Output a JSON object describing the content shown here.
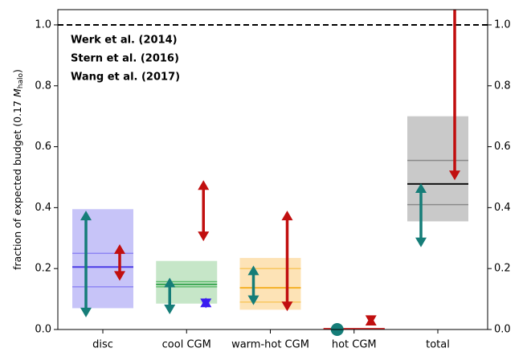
{
  "chart_data": {
    "type": "range",
    "ylabel": [
      "fraction of expected budget (0.17 ",
      "M",
      "halo",
      ")"
    ],
    "categories": [
      "disc",
      "cool CGM",
      "warm-hot CGM",
      "hot CGM",
      "total"
    ],
    "ylim": [
      0,
      1.05
    ],
    "yticks": [
      {
        "value": 0,
        "label": "0.0"
      },
      0.2,
      0.4,
      0.6,
      0.8,
      {
        "value": 1,
        "label": "1.0"
      }
    ],
    "y2lim": [
      0,
      1.05
    ],
    "y2ticks": [
      {
        "value": 0,
        "label": "0.0"
      },
      0.2,
      0.4,
      0.6,
      0.8,
      {
        "value": 1,
        "label": "1.0"
      }
    ],
    "reference_line": 1,
    "boxes": [
      {
        "low": 0.07,
        "high": 0.395,
        "median": 0.205,
        "inner": [
          0.14,
          0.25
        ],
        "fill": "#c7c4f8",
        "line": "#8f86f3",
        "median_color": "#4b3be6"
      },
      {
        "low": 0.085,
        "high": 0.225,
        "median": 0.148,
        "inner": [
          0.14,
          0.157
        ],
        "fill": "#c6e6c8",
        "line": "#5cbb6c",
        "median_color": "#3aa552"
      },
      {
        "low": 0.065,
        "high": 0.235,
        "median": 0.137,
        "inner": [
          0.09,
          0.2
        ],
        "fill": "#fde3b6",
        "line": "#f8c760",
        "median_color": "#f4b128"
      },
      {
        "low": 0,
        "high": 0.004,
        "median": 0.002,
        "inner": [
          0.001,
          0.003
        ],
        "fill": "#f2b5b5",
        "line": "#e05050",
        "median_color": "#d62728"
      },
      {
        "low": 0.355,
        "high": 0.7,
        "median": 0.478,
        "inner": [
          0.41,
          0.555
        ],
        "fill": "#c9c9c9",
        "line": "#8a8a8a",
        "median_color": "#111111"
      }
    ],
    "series": [
      {
        "name": "Werk et al. (2014)",
        "color": "#c10f0f",
        "values": [
          [
            0.16,
            0.28
          ],
          [
            0.29,
            0.49
          ],
          [
            0.06,
            0.39
          ],
          [
            0.015,
            0.045
          ],
          [
            0.49,
            null
          ]
        ]
      },
      {
        "name": "Stern et al. (2016)",
        "color": "#3a1cf0",
        "values": [
          null,
          [
            0.07,
            0.105
          ],
          null,
          null,
          null
        ]
      },
      {
        "name": "Wang et al. (2017)",
        "color": "#157d78",
        "values": [
          [
            0.04,
            0.39
          ],
          [
            0.05,
            0.17
          ],
          [
            0.08,
            0.21
          ],
          [
            0,
            0
          ],
          [
            0.27,
            0.48
          ]
        ]
      }
    ]
  }
}
